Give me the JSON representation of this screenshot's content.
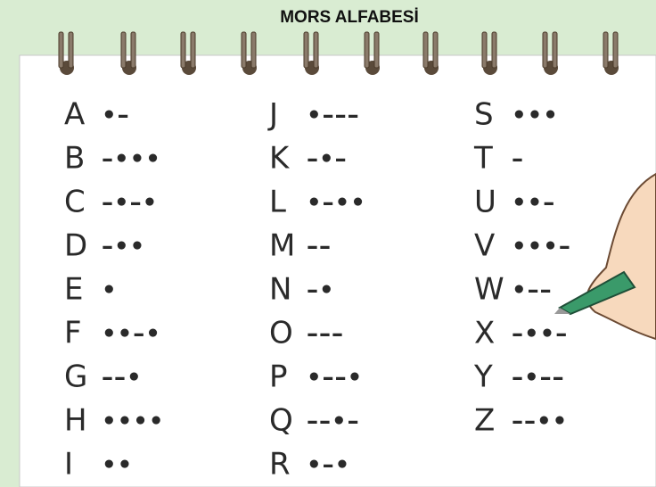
{
  "title": "MORS ALFABESİ",
  "columns": [
    [
      {
        "letter": "A",
        "code": "•–"
      },
      {
        "letter": "B",
        "code": "–•••"
      },
      {
        "letter": "C",
        "code": "–•–•"
      },
      {
        "letter": "D",
        "code": "–••"
      },
      {
        "letter": "E",
        "code": "•"
      },
      {
        "letter": "F",
        "code": "••–•"
      },
      {
        "letter": "G",
        "code": "––•"
      },
      {
        "letter": "H",
        "code": "••••"
      },
      {
        "letter": "I",
        "code": "••"
      }
    ],
    [
      {
        "letter": "J",
        "code": "•–––"
      },
      {
        "letter": "K",
        "code": "–•–"
      },
      {
        "letter": "L",
        "code": "•–••"
      },
      {
        "letter": "M",
        "code": "––"
      },
      {
        "letter": "N",
        "code": "–•"
      },
      {
        "letter": "O",
        "code": "–––"
      },
      {
        "letter": "P",
        "code": "•––•"
      },
      {
        "letter": "Q",
        "code": "––•–"
      },
      {
        "letter": "R",
        "code": "•–•"
      }
    ],
    [
      {
        "letter": "S",
        "code": "•••"
      },
      {
        "letter": "T",
        "code": "–"
      },
      {
        "letter": "U",
        "code": "••–"
      },
      {
        "letter": "V",
        "code": "•••–"
      },
      {
        "letter": "W",
        "code": "•––"
      },
      {
        "letter": "X",
        "code": "–••–"
      },
      {
        "letter": "Y",
        "code": "–•––"
      },
      {
        "letter": "Z",
        "code": "––••"
      }
    ]
  ]
}
